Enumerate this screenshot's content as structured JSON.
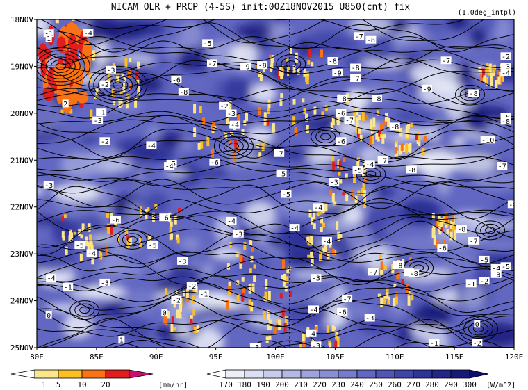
{
  "chart_data": {
    "type": "heatmap",
    "title": "NICAM  OLR + PRCP (4-5S) init:00Z18NOV2015 U850(cnt) fix",
    "subtitle": "(1.0deg_intpl)",
    "x_ticks": [
      "80E",
      "85E",
      "90E",
      "95E",
      "100E",
      "105E",
      "110E",
      "115E",
      "120E"
    ],
    "x_values": [
      80,
      85,
      90,
      95,
      100,
      105,
      110,
      115,
      120
    ],
    "y_ticks": [
      "18NOV",
      "19NOV",
      "20NOV",
      "21NOV",
      "22NOV",
      "23NOV",
      "24NOV",
      "25NOV"
    ],
    "xlim": [
      80,
      120
    ],
    "ylim_days": [
      18,
      25
    ],
    "reference_line_lon": 101.2,
    "prcp_colorbar": {
      "labels": [
        "1",
        "5",
        "10",
        "20"
      ],
      "unit": "[mm/hr]",
      "colors": [
        "#ffffff",
        "#fde68a",
        "#fbbf24",
        "#f97316",
        "#e11d1d",
        "#c8106e"
      ]
    },
    "olr_colorbar": {
      "labels": [
        "170",
        "180",
        "190",
        "200",
        "210",
        "220",
        "230",
        "240",
        "250",
        "260",
        "270",
        "280",
        "290",
        "300"
      ],
      "unit": "[W/m^2]",
      "colors": [
        "#ffffff",
        "#eceef8",
        "#dcdff2",
        "#c8ccec",
        "#b3b8e4",
        "#9ea3db",
        "#8a8fd3",
        "#767bca",
        "#6267c1",
        "#5055b6",
        "#3f44a8",
        "#2f3498",
        "#22268a",
        "#16197a",
        "#0c0e6a"
      ]
    },
    "contour_labels": [
      {
        "lon": 81.0,
        "day": 18.3,
        "text": "-1"
      },
      {
        "lon": 84.3,
        "day": 18.29,
        "text": "-4"
      },
      {
        "lon": 81.0,
        "day": 18.41,
        "text": "1"
      },
      {
        "lon": 86.2,
        "day": 19.08,
        "text": "-3"
      },
      {
        "lon": 85.7,
        "day": 19.39,
        "text": "-2"
      },
      {
        "lon": 82.4,
        "day": 19.8,
        "text": "2"
      },
      {
        "lon": 85.4,
        "day": 19.99,
        "text": "-1"
      },
      {
        "lon": 85.1,
        "day": 20.16,
        "text": "-3"
      },
      {
        "lon": 85.7,
        "day": 20.6,
        "text": "-2"
      },
      {
        "lon": 89.6,
        "day": 20.69,
        "text": "-4"
      },
      {
        "lon": 94.3,
        "day": 18.51,
        "text": "-5"
      },
      {
        "lon": 94.7,
        "day": 18.94,
        "text": "-7"
      },
      {
        "lon": 91.7,
        "day": 19.29,
        "text": "-6"
      },
      {
        "lon": 97.5,
        "day": 19.01,
        "text": "-9"
      },
      {
        "lon": 98.9,
        "day": 18.98,
        "text": "-8"
      },
      {
        "lon": 92.3,
        "day": 19.55,
        "text": "-8"
      },
      {
        "lon": 95.7,
        "day": 19.85,
        "text": "-2"
      },
      {
        "lon": 96.3,
        "day": 20.01,
        "text": "-3"
      },
      {
        "lon": 96.6,
        "day": 20.25,
        "text": "-4"
      },
      {
        "lon": 100.3,
        "day": 20.86,
        "text": "-7"
      },
      {
        "lon": 91.3,
        "day": 21.08,
        "text": "-5"
      },
      {
        "lon": 91.1,
        "day": 21.13,
        "text": "-4"
      },
      {
        "lon": 94.9,
        "day": 21.05,
        "text": "-6"
      },
      {
        "lon": 100.5,
        "day": 21.29,
        "text": "-5"
      },
      {
        "lon": 81.0,
        "day": 21.54,
        "text": "-3"
      },
      {
        "lon": 100.9,
        "day": 21.73,
        "text": "-5"
      },
      {
        "lon": 86.6,
        "day": 22.28,
        "text": "-6"
      },
      {
        "lon": 90.7,
        "day": 22.23,
        "text": "-6"
      },
      {
        "lon": 96.3,
        "day": 22.3,
        "text": "-4"
      },
      {
        "lon": 96.9,
        "day": 22.58,
        "text": "-3"
      },
      {
        "lon": 101.6,
        "day": 22.45,
        "text": "-4"
      },
      {
        "lon": 83.6,
        "day": 22.82,
        "text": "-5"
      },
      {
        "lon": 89.7,
        "day": 22.82,
        "text": "-5"
      },
      {
        "lon": 84.6,
        "day": 22.99,
        "text": "-4"
      },
      {
        "lon": 92.2,
        "day": 23.16,
        "text": "-3"
      },
      {
        "lon": 81.2,
        "day": 23.52,
        "text": "-4"
      },
      {
        "lon": 82.6,
        "day": 23.71,
        "text": "-1"
      },
      {
        "lon": 85.7,
        "day": 23.62,
        "text": "-3"
      },
      {
        "lon": 93.0,
        "day": 23.69,
        "text": "-2"
      },
      {
        "lon": 94.0,
        "day": 23.86,
        "text": "-1"
      },
      {
        "lon": 91.7,
        "day": 23.99,
        "text": "-2"
      },
      {
        "lon": 103.4,
        "day": 23.52,
        "text": "-3"
      },
      {
        "lon": 90.7,
        "day": 24.26,
        "text": "0"
      },
      {
        "lon": 81.0,
        "day": 24.31,
        "text": "0"
      },
      {
        "lon": 87.1,
        "day": 24.84,
        "text": "1"
      },
      {
        "lon": 103.2,
        "day": 24.19,
        "text": "-4"
      },
      {
        "lon": 103.0,
        "day": 24.7,
        "text": "-4"
      },
      {
        "lon": 103.4,
        "day": 24.96,
        "text": "-3"
      },
      {
        "lon": 103.6,
        "day": 22.01,
        "text": "-4"
      },
      {
        "lon": 106.7,
        "day": 19.26,
        "text": "-7"
      },
      {
        "lon": 106.7,
        "day": 19.03,
        "text": "-8"
      },
      {
        "lon": 107.0,
        "day": 18.36,
        "text": "-7"
      },
      {
        "lon": 108.0,
        "day": 18.44,
        "text": "-8"
      },
      {
        "lon": 104.8,
        "day": 18.89,
        "text": "-8"
      },
      {
        "lon": 105.2,
        "day": 19.14,
        "text": "-9"
      },
      {
        "lon": 105.6,
        "day": 19.69,
        "text": "-8"
      },
      {
        "lon": 108.5,
        "day": 19.69,
        "text": "-8"
      },
      {
        "lon": 105.5,
        "day": 20.0,
        "text": "-6"
      },
      {
        "lon": 106.2,
        "day": 20.15,
        "text": "-7"
      },
      {
        "lon": 110.0,
        "day": 20.29,
        "text": "-8"
      },
      {
        "lon": 105.5,
        "day": 20.6,
        "text": "-6"
      },
      {
        "lon": 107.9,
        "day": 21.09,
        "text": "-4"
      },
      {
        "lon": 109.0,
        "day": 21.01,
        "text": "-7"
      },
      {
        "lon": 111.4,
        "day": 21.21,
        "text": "-8"
      },
      {
        "lon": 104.9,
        "day": 21.47,
        "text": "-3"
      },
      {
        "lon": 106.9,
        "day": 21.22,
        "text": "-5"
      },
      {
        "lon": 112.7,
        "day": 19.48,
        "text": "-9"
      },
      {
        "lon": 116.6,
        "day": 19.58,
        "text": "-8"
      },
      {
        "lon": 114.3,
        "day": 18.88,
        "text": "-7"
      },
      {
        "lon": 119.3,
        "day": 18.79,
        "text": "-2"
      },
      {
        "lon": 119.3,
        "day": 19.01,
        "text": "-3"
      },
      {
        "lon": 119.3,
        "day": 19.14,
        "text": "-4"
      },
      {
        "lon": 119.3,
        "day": 20.08,
        "text": "-8"
      },
      {
        "lon": 119.3,
        "day": 20.17,
        "text": "-8"
      },
      {
        "lon": 117.8,
        "day": 20.57,
        "text": "-10"
      },
      {
        "lon": 119.0,
        "day": 21.13,
        "text": "-7"
      },
      {
        "lon": 119.9,
        "day": 21.95,
        "text": "-8"
      },
      {
        "lon": 115.6,
        "day": 22.48,
        "text": "-8"
      },
      {
        "lon": 116.6,
        "day": 22.73,
        "text": "-7"
      },
      {
        "lon": 117.5,
        "day": 23.13,
        "text": "-5"
      },
      {
        "lon": 119.3,
        "day": 23.27,
        "text": "-5"
      },
      {
        "lon": 118.5,
        "day": 23.31,
        "text": "-4"
      },
      {
        "lon": 118.5,
        "day": 23.44,
        "text": "-3"
      },
      {
        "lon": 117.5,
        "day": 23.58,
        "text": "-2"
      },
      {
        "lon": 116.4,
        "day": 23.64,
        "text": "-1"
      },
      {
        "lon": 111.2,
        "day": 23.4,
        "text": "-5"
      },
      {
        "lon": 111.6,
        "day": 23.42,
        "text": "-8"
      },
      {
        "lon": 114.0,
        "day": 22.88,
        "text": "-6"
      },
      {
        "lon": 110.3,
        "day": 23.25,
        "text": "-8"
      },
      {
        "lon": 108.2,
        "day": 23.39,
        "text": "-7"
      },
      {
        "lon": 106.0,
        "day": 23.96,
        "text": "-7"
      },
      {
        "lon": 107.9,
        "day": 24.37,
        "text": "-3"
      },
      {
        "lon": 105.6,
        "day": 24.24,
        "text": "-6"
      },
      {
        "lon": 116.9,
        "day": 24.5,
        "text": "0"
      },
      {
        "lon": 116.9,
        "day": 24.9,
        "text": "-2"
      },
      {
        "lon": 113.3,
        "day": 24.9,
        "text": "-1"
      },
      {
        "lon": 98.3,
        "day": 24.99,
        "text": "-3"
      },
      {
        "lon": 104.3,
        "day": 22.73,
        "text": "-4"
      }
    ]
  }
}
